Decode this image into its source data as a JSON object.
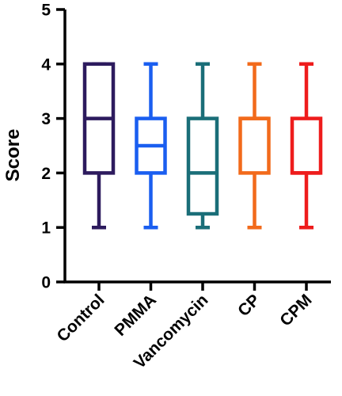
{
  "chart_data": {
    "type": "box",
    "title": "",
    "xlabel": "",
    "ylabel": "Score",
    "ylim": [
      0,
      5
    ],
    "yticks": [
      "0",
      "1",
      "2",
      "3",
      "4",
      "5"
    ],
    "categories": [
      "Control",
      "PMMA",
      "Vancomycin",
      "CP",
      "CPM"
    ],
    "boxes": [
      {
        "category": "Control",
        "min": 1,
        "q1": 2,
        "median": 3,
        "q3": 4,
        "max": 4,
        "color": "#2d1b5e"
      },
      {
        "category": "PMMA",
        "min": 1,
        "q1": 2,
        "median": 2.5,
        "q3": 3,
        "max": 4,
        "color": "#1a5ef0"
      },
      {
        "category": "Vancomycin",
        "min": 1,
        "q1": 1.25,
        "median": 2,
        "q3": 3,
        "max": 4,
        "color": "#1a6e78"
      },
      {
        "category": "CP",
        "min": 1,
        "q1": 2,
        "median": 3,
        "q3": 3,
        "max": 4,
        "color": "#f26a1b"
      },
      {
        "category": "CPM",
        "min": 1,
        "q1": 2,
        "median": 2,
        "q3": 3,
        "max": 4,
        "color": "#ee1c1c"
      }
    ],
    "grid": false,
    "legend": "none"
  }
}
